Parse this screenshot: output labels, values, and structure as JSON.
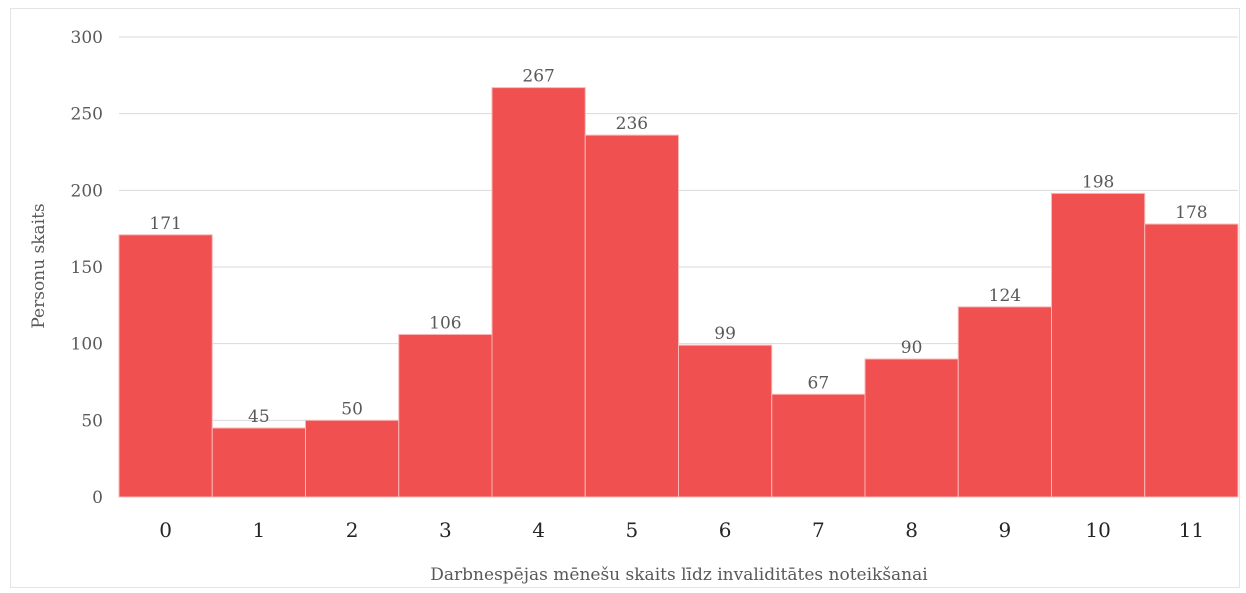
{
  "chart_data": {
    "type": "bar",
    "title": "",
    "xlabel": "Darbnespējas mēnešu skaits līdz invaliditātes noteikšanai",
    "ylabel": "Personu skaits",
    "categories": [
      "0",
      "1",
      "2",
      "3",
      "4",
      "5",
      "6",
      "7",
      "8",
      "9",
      "10",
      "11"
    ],
    "values": [
      171,
      45,
      50,
      106,
      267,
      236,
      99,
      67,
      90,
      124,
      198,
      178
    ],
    "ylim": [
      0,
      300
    ],
    "yticks": [
      0,
      50,
      100,
      150,
      200,
      250,
      300
    ],
    "grid": true,
    "legend": "none",
    "bar_color": "#f05050",
    "bar_edge_color": "#f8b8b8",
    "data_labels": true
  }
}
